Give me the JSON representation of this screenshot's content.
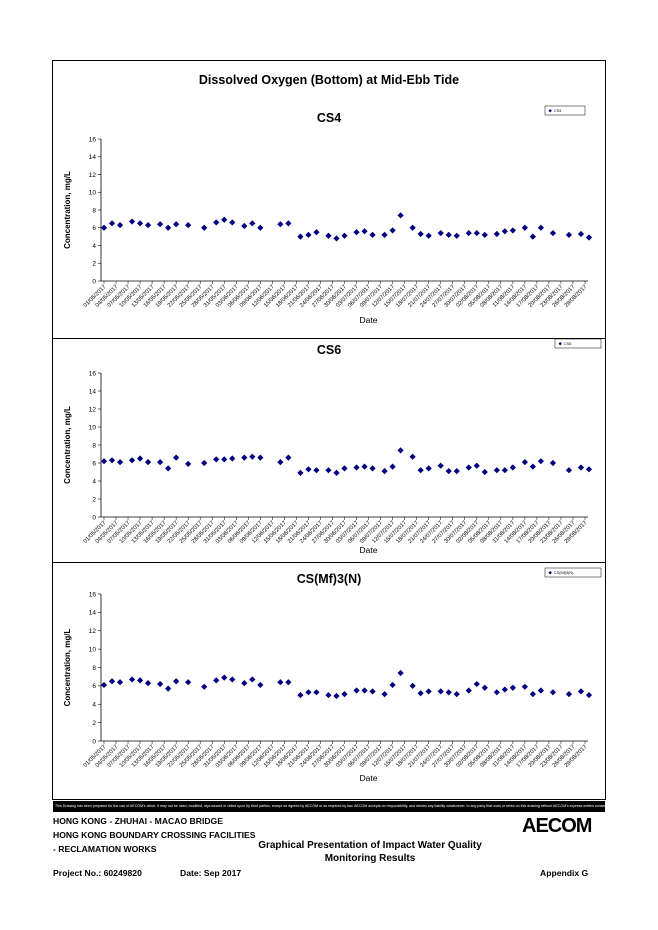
{
  "page": {
    "main_title": "Dissolved Oxygen (Bottom) at Mid-Ebb Tide",
    "disclaimer": "This Drawing has been prepared for the use of AECOM's client. It may not be used, modified, reproduced or relied upon by third parties, except as agreed by AECOM or as required by law. AECOM accepts no responsibility, and denies any liability whatsoever, to any party that uses or relies on this drawing without AECOM's express written consent."
  },
  "footer": {
    "line1": "HONG KONG - ZHUHAI - MACAO BRIDGE",
    "line2": "HONG KONG BOUNDARY CROSSING FACILITIES",
    "line3": "- RECLAMATION WORKS",
    "center_line1": "Graphical Presentation of Impact Water Quality",
    "center_line2": "Monitoring Results",
    "project_no": "Project No.: 60249820",
    "date": "Date: Sep 2017",
    "appendix": "Appendix G",
    "logo": "AECOM"
  },
  "chart_data": [
    {
      "type": "scatter",
      "title": "CS4",
      "xlabel": "Date",
      "ylabel": "Concentration, mg/L",
      "ylim": [
        0,
        16
      ],
      "yticks": [
        0,
        2,
        4,
        6,
        8,
        10,
        12,
        14,
        16
      ],
      "grid": false,
      "legend_position": "top-right",
      "marker_color": "#000080",
      "x_tick_labels": [
        "01/05/2017",
        "04/05/2017",
        "07/05/2017",
        "10/05/2017",
        "13/05/2017",
        "16/05/2017",
        "19/05/2017",
        "22/05/2017",
        "25/05/2017",
        "28/05/2017",
        "31/05/2017",
        "03/06/2017",
        "06/06/2017",
        "09/06/2017",
        "12/06/2017",
        "15/06/2017",
        "18/06/2017",
        "21/06/2017",
        "24/06/2017",
        "27/06/2017",
        "30/06/2017",
        "03/07/2017",
        "06/07/2017",
        "09/07/2017",
        "12/07/2017",
        "15/07/2017",
        "18/07/2017",
        "21/07/2017",
        "24/07/2017",
        "27/07/2017",
        "30/07/2017",
        "02/08/2017",
        "05/08/2017",
        "08/08/2017",
        "11/08/2017",
        "14/08/2017",
        "17/08/2017",
        "20/08/2017",
        "23/08/2017",
        "26/08/2017",
        "29/08/2017"
      ],
      "series": [
        {
          "name": "CS4",
          "points": [
            [
              "01/05/2017",
              6.0
            ],
            [
              "03/05/2017",
              6.5
            ],
            [
              "05/05/2017",
              6.3
            ],
            [
              "08/05/2017",
              6.7
            ],
            [
              "10/05/2017",
              6.5
            ],
            [
              "12/05/2017",
              6.3
            ],
            [
              "15/05/2017",
              6.4
            ],
            [
              "17/05/2017",
              6.0
            ],
            [
              "19/05/2017",
              6.4
            ],
            [
              "22/05/2017",
              6.3
            ],
            [
              "26/05/2017",
              6.0
            ],
            [
              "29/05/2017",
              6.6
            ],
            [
              "31/05/2017",
              6.9
            ],
            [
              "02/06/2017",
              6.6
            ],
            [
              "05/06/2017",
              6.2
            ],
            [
              "07/06/2017",
              6.5
            ],
            [
              "09/06/2017",
              6.0
            ],
            [
              "14/06/2017",
              6.4
            ],
            [
              "16/06/2017",
              6.5
            ],
            [
              "19/06/2017",
              5.0
            ],
            [
              "21/06/2017",
              5.2
            ],
            [
              "23/06/2017",
              5.5
            ],
            [
              "26/06/2017",
              5.1
            ],
            [
              "28/06/2017",
              4.8
            ],
            [
              "30/06/2017",
              5.1
            ],
            [
              "03/07/2017",
              5.5
            ],
            [
              "05/07/2017",
              5.6
            ],
            [
              "07/07/2017",
              5.2
            ],
            [
              "10/07/2017",
              5.2
            ],
            [
              "12/07/2017",
              5.7
            ],
            [
              "14/07/2017",
              7.4
            ],
            [
              "17/07/2017",
              6.0
            ],
            [
              "19/07/2017",
              5.3
            ],
            [
              "21/07/2017",
              5.1
            ],
            [
              "24/07/2017",
              5.4
            ],
            [
              "26/07/2017",
              5.2
            ],
            [
              "28/07/2017",
              5.1
            ],
            [
              "31/07/2017",
              5.4
            ],
            [
              "02/08/2017",
              5.4
            ],
            [
              "04/08/2017",
              5.2
            ],
            [
              "07/08/2017",
              5.3
            ],
            [
              "09/08/2017",
              5.6
            ],
            [
              "11/08/2017",
              5.7
            ],
            [
              "14/08/2017",
              6.0
            ],
            [
              "16/08/2017",
              5.0
            ],
            [
              "18/08/2017",
              6.0
            ],
            [
              "21/08/2017",
              5.4
            ],
            [
              "25/08/2017",
              5.2
            ],
            [
              "28/08/2017",
              5.3
            ],
            [
              "30/08/2017",
              4.9
            ]
          ]
        }
      ]
    },
    {
      "type": "scatter",
      "title": "CS6",
      "xlabel": "Date",
      "ylabel": "Concentration, mg/L",
      "ylim": [
        0,
        16
      ],
      "yticks": [
        0,
        2,
        4,
        6,
        8,
        10,
        12,
        14,
        16
      ],
      "grid": false,
      "legend_position": "top-right",
      "marker_color": "#000080",
      "x_tick_labels": [
        "01/05/2017",
        "04/05/2017",
        "07/05/2017",
        "10/05/2017",
        "13/05/2017",
        "16/05/2017",
        "19/05/2017",
        "22/05/2017",
        "25/05/2017",
        "28/05/2017",
        "31/05/2017",
        "03/06/2017",
        "06/06/2017",
        "09/06/2017",
        "12/06/2017",
        "15/06/2017",
        "18/06/2017",
        "21/06/2017",
        "24/06/2017",
        "27/06/2017",
        "30/06/2017",
        "03/07/2017",
        "06/07/2017",
        "09/07/2017",
        "12/07/2017",
        "15/07/2017",
        "18/07/2017",
        "21/07/2017",
        "24/07/2017",
        "27/07/2017",
        "30/07/2017",
        "02/08/2017",
        "05/08/2017",
        "08/08/2017",
        "11/08/2017",
        "14/08/2017",
        "17/08/2017",
        "20/08/2017",
        "23/08/2017",
        "26/08/2017",
        "29/08/2017"
      ],
      "series": [
        {
          "name": "CS6",
          "points": [
            [
              "01/05/2017",
              6.2
            ],
            [
              "03/05/2017",
              6.3
            ],
            [
              "05/05/2017",
              6.1
            ],
            [
              "08/05/2017",
              6.3
            ],
            [
              "10/05/2017",
              6.5
            ],
            [
              "12/05/2017",
              6.1
            ],
            [
              "15/05/2017",
              6.1
            ],
            [
              "17/05/2017",
              5.4
            ],
            [
              "19/05/2017",
              6.6
            ],
            [
              "22/05/2017",
              5.9
            ],
            [
              "26/05/2017",
              6.0
            ],
            [
              "29/05/2017",
              6.4
            ],
            [
              "31/05/2017",
              6.4
            ],
            [
              "02/06/2017",
              6.5
            ],
            [
              "05/06/2017",
              6.6
            ],
            [
              "07/06/2017",
              6.7
            ],
            [
              "09/06/2017",
              6.6
            ],
            [
              "14/06/2017",
              6.1
            ],
            [
              "16/06/2017",
              6.6
            ],
            [
              "19/06/2017",
              4.9
            ],
            [
              "21/06/2017",
              5.3
            ],
            [
              "23/06/2017",
              5.2
            ],
            [
              "26/06/2017",
              5.2
            ],
            [
              "28/06/2017",
              4.9
            ],
            [
              "30/06/2017",
              5.4
            ],
            [
              "03/07/2017",
              5.5
            ],
            [
              "05/07/2017",
              5.6
            ],
            [
              "07/07/2017",
              5.4
            ],
            [
              "10/07/2017",
              5.1
            ],
            [
              "12/07/2017",
              5.6
            ],
            [
              "14/07/2017",
              7.4
            ],
            [
              "17/07/2017",
              6.7
            ],
            [
              "19/07/2017",
              5.2
            ],
            [
              "21/07/2017",
              5.4
            ],
            [
              "24/07/2017",
              5.7
            ],
            [
              "26/07/2017",
              5.1
            ],
            [
              "28/07/2017",
              5.1
            ],
            [
              "31/07/2017",
              5.5
            ],
            [
              "02/08/2017",
              5.7
            ],
            [
              "04/08/2017",
              5.0
            ],
            [
              "07/08/2017",
              5.2
            ],
            [
              "09/08/2017",
              5.2
            ],
            [
              "11/08/2017",
              5.5
            ],
            [
              "14/08/2017",
              6.1
            ],
            [
              "16/08/2017",
              5.6
            ],
            [
              "18/08/2017",
              6.2
            ],
            [
              "21/08/2017",
              6.0
            ],
            [
              "25/08/2017",
              5.2
            ],
            [
              "28/08/2017",
              5.5
            ],
            [
              "30/08/2017",
              5.3
            ]
          ]
        }
      ]
    },
    {
      "type": "scatter",
      "title": "CS(Mf)3(N)",
      "xlabel": "Date",
      "ylabel": "Concentration, mg/L",
      "ylim": [
        0,
        16
      ],
      "yticks": [
        0,
        2,
        4,
        6,
        8,
        10,
        12,
        14,
        16
      ],
      "grid": false,
      "legend_position": "top-right",
      "marker_color": "#000080",
      "x_tick_labels": [
        "01/05/2017",
        "04/05/2017",
        "07/05/2017",
        "10/05/2017",
        "13/05/2017",
        "16/05/2017",
        "19/05/2017",
        "22/05/2017",
        "25/05/2017",
        "28/05/2017",
        "31/05/2017",
        "03/06/2017",
        "06/06/2017",
        "09/06/2017",
        "12/06/2017",
        "15/06/2017",
        "18/06/2017",
        "21/06/2017",
        "24/06/2017",
        "27/06/2017",
        "30/06/2017",
        "03/07/2017",
        "06/07/2017",
        "09/07/2017",
        "12/07/2017",
        "15/07/2017",
        "18/07/2017",
        "21/07/2017",
        "24/07/2017",
        "27/07/2017",
        "30/07/2017",
        "02/08/2017",
        "05/08/2017",
        "08/08/2017",
        "11/08/2017",
        "14/08/2017",
        "17/08/2017",
        "20/08/2017",
        "23/08/2017",
        "26/08/2017",
        "29/08/2017"
      ],
      "series": [
        {
          "name": "CS(Mf)3(N)",
          "points": [
            [
              "01/05/2017",
              6.1
            ],
            [
              "03/05/2017",
              6.5
            ],
            [
              "05/05/2017",
              6.4
            ],
            [
              "08/05/2017",
              6.7
            ],
            [
              "10/05/2017",
              6.6
            ],
            [
              "12/05/2017",
              6.3
            ],
            [
              "15/05/2017",
              6.2
            ],
            [
              "17/05/2017",
              5.7
            ],
            [
              "19/05/2017",
              6.5
            ],
            [
              "22/05/2017",
              6.4
            ],
            [
              "26/05/2017",
              5.9
            ],
            [
              "29/05/2017",
              6.6
            ],
            [
              "31/05/2017",
              6.9
            ],
            [
              "02/06/2017",
              6.7
            ],
            [
              "05/06/2017",
              6.3
            ],
            [
              "07/06/2017",
              6.7
            ],
            [
              "09/06/2017",
              6.1
            ],
            [
              "14/06/2017",
              6.4
            ],
            [
              "16/06/2017",
              6.4
            ],
            [
              "19/06/2017",
              5.0
            ],
            [
              "21/06/2017",
              5.3
            ],
            [
              "23/06/2017",
              5.3
            ],
            [
              "26/06/2017",
              5.0
            ],
            [
              "28/06/2017",
              4.9
            ],
            [
              "30/06/2017",
              5.1
            ],
            [
              "03/07/2017",
              5.5
            ],
            [
              "05/07/2017",
              5.5
            ],
            [
              "07/07/2017",
              5.4
            ],
            [
              "10/07/2017",
              5.1
            ],
            [
              "12/07/2017",
              6.1
            ],
            [
              "14/07/2017",
              7.4
            ],
            [
              "17/07/2017",
              6.0
            ],
            [
              "19/07/2017",
              5.2
            ],
            [
              "21/07/2017",
              5.4
            ],
            [
              "24/07/2017",
              5.4
            ],
            [
              "26/07/2017",
              5.3
            ],
            [
              "28/07/2017",
              5.1
            ],
            [
              "31/07/2017",
              5.5
            ],
            [
              "02/08/2017",
              6.2
            ],
            [
              "04/08/2017",
              5.8
            ],
            [
              "07/08/2017",
              5.3
            ],
            [
              "09/08/2017",
              5.6
            ],
            [
              "11/08/2017",
              5.8
            ],
            [
              "14/08/2017",
              5.9
            ],
            [
              "16/08/2017",
              5.1
            ],
            [
              "18/08/2017",
              5.5
            ],
            [
              "21/08/2017",
              5.3
            ],
            [
              "25/08/2017",
              5.1
            ],
            [
              "28/08/2017",
              5.4
            ],
            [
              "30/08/2017",
              5.0
            ]
          ]
        }
      ]
    }
  ]
}
